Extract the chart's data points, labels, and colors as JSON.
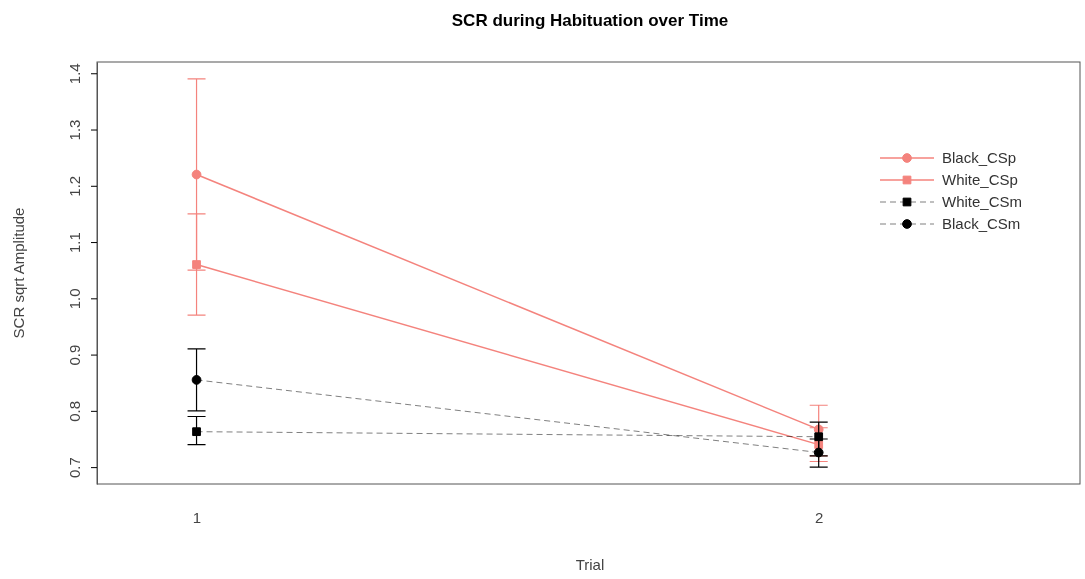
{
  "chart_data": {
    "type": "line",
    "title": "SCR during Habituation over Time",
    "xlabel": "Trial",
    "ylabel": "SCR sqrt Amplitude",
    "x": [
      1,
      2
    ],
    "xlim": [
      0.84,
      2.42
    ],
    "xticks": [
      1,
      2
    ],
    "ylim": [
      0.67,
      1.42
    ],
    "yticks": [
      0.7,
      0.8,
      0.9,
      {
        "value": 1,
        "label": "1.0"
      },
      1.1,
      1.2,
      1.3,
      1.4
    ],
    "legend": "top right",
    "series": [
      {
        "name": "Black_CSp",
        "color": "#f4837d",
        "values": [
          1.22,
          0.767
        ],
        "errors": [
          [
            0.97,
            1.39
          ],
          [
            0.72,
            0.81
          ]
        ],
        "marker": "circle",
        "line_style": "solid"
      },
      {
        "name": "White_CSp",
        "color": "#f4837d",
        "values": [
          1.06,
          0.74
        ],
        "errors": [
          [
            1.05,
            1.15
          ],
          [
            0.71,
            0.77
          ]
        ],
        "marker": "square",
        "line_style": "solid"
      },
      {
        "name": "White_CSm",
        "color": "#000000",
        "values": [
          0.763,
          0.754
        ],
        "errors": [
          [
            0.74,
            0.79
          ],
          [
            0.72,
            0.78
          ]
        ],
        "marker": "square",
        "line_style": "dashed"
      },
      {
        "name": "Black_CSm",
        "color": "#000000",
        "values": [
          0.855,
          0.726
        ],
        "errors": [
          [
            0.8,
            0.91
          ],
          [
            0.7,
            0.75
          ]
        ],
        "marker": "circle",
        "line_style": "dashed"
      }
    ]
  }
}
